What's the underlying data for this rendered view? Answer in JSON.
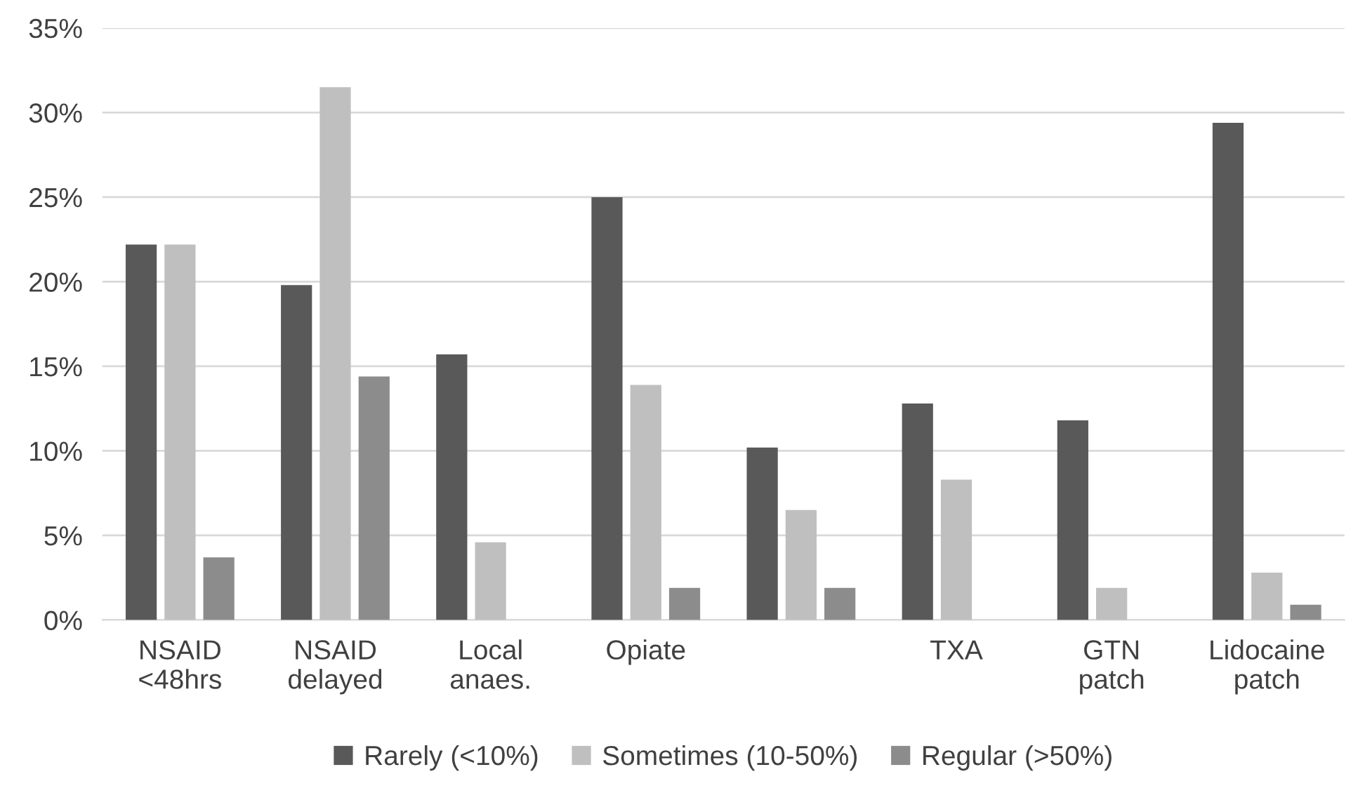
{
  "chart_data": {
    "type": "bar",
    "categories": [
      "NSAID\n<48hrs",
      "NSAID\ndelayed",
      "Local\nanaes.",
      "Opiate",
      null,
      "TXA",
      "GTN\npatch",
      "Lidocaine\npatch"
    ],
    "series": [
      {
        "name": "Rarely (<10%)",
        "color": "#595959",
        "values": [
          22.2,
          19.8,
          15.7,
          25.0,
          10.2,
          12.8,
          11.8,
          29.4
        ]
      },
      {
        "name": "Sometimes (10-50%)",
        "color": "#bfbfbf",
        "values": [
          22.2,
          31.5,
          4.6,
          13.9,
          6.5,
          8.3,
          1.9,
          2.8
        ]
      },
      {
        "name": "Regular (>50%)",
        "color": "#8c8c8c",
        "values": [
          3.7,
          14.4,
          0,
          1.9,
          1.9,
          0,
          0,
          0.9
        ]
      }
    ],
    "ylim": [
      0,
      35
    ],
    "yticks": [
      {
        "value": 0,
        "label": "0%"
      },
      {
        "value": 5,
        "label": "5%"
      },
      {
        "value": 10,
        "label": "10%"
      },
      {
        "value": 15,
        "label": "15%"
      },
      {
        "value": 20,
        "label": "20%"
      },
      {
        "value": 25,
        "label": "25%"
      },
      {
        "value": 30,
        "label": "30%"
      },
      {
        "value": 35,
        "label": "35%"
      }
    ],
    "grid": "y",
    "legend": "bottom"
  }
}
